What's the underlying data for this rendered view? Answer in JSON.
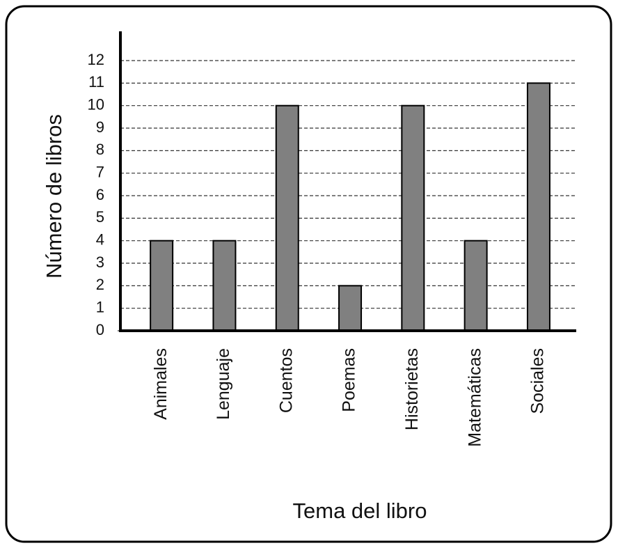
{
  "chart_data": {
    "type": "bar",
    "x_label": "Tema del libro",
    "y_label": "Número de libros",
    "categories": [
      "Animales",
      "Lenguaje",
      "Cuentos",
      "Poemas",
      "Historietas",
      "Matemáticas",
      "Sociales"
    ],
    "values": [
      4,
      4,
      10,
      2,
      10,
      4,
      11
    ],
    "color": "#808080",
    "ylim": [
      0,
      13.3
    ],
    "yticks": [
      0,
      1,
      2,
      3,
      4,
      5,
      6,
      7,
      8,
      9,
      10,
      11,
      12
    ],
    "grid": true
  }
}
